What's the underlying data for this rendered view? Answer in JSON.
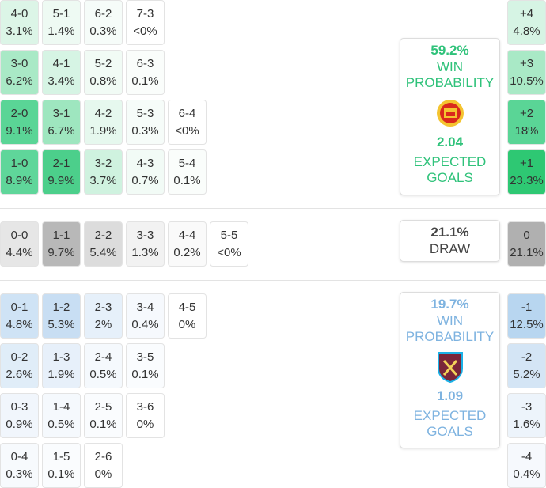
{
  "sections": [
    {
      "name": "home",
      "rows": [
        [
          {
            "score": "4-0",
            "pct": "3.1%",
            "color": "#dcf5e7"
          },
          {
            "score": "5-1",
            "pct": "1.4%",
            "color": "#eefaf3"
          },
          {
            "score": "6-2",
            "pct": "0.3%",
            "color": "#f6fcf9"
          },
          {
            "score": "7-3",
            "pct": "<0%",
            "color": "#ffffff"
          }
        ],
        [
          {
            "score": "3-0",
            "pct": "6.2%",
            "color": "#a9e9c6"
          },
          {
            "score": "4-1",
            "pct": "3.4%",
            "color": "#d6f4e4"
          },
          {
            "score": "5-2",
            "pct": "0.8%",
            "color": "#f1fbf5"
          },
          {
            "score": "6-3",
            "pct": "0.1%",
            "color": "#fafdfb"
          }
        ],
        [
          {
            "score": "2-0",
            "pct": "9.1%",
            "color": "#5ad596"
          },
          {
            "score": "3-1",
            "pct": "6.7%",
            "color": "#9ee6bf"
          },
          {
            "score": "4-2",
            "pct": "1.9%",
            "color": "#e6f8ee"
          },
          {
            "score": "5-3",
            "pct": "0.3%",
            "color": "#f6fcf9"
          },
          {
            "score": "6-4",
            "pct": "<0%",
            "color": "#ffffff"
          }
        ],
        [
          {
            "score": "1-0",
            "pct": "8.9%",
            "color": "#5fd69a"
          },
          {
            "score": "2-1",
            "pct": "9.9%",
            "color": "#4ccf8b"
          },
          {
            "score": "3-2",
            "pct": "3.7%",
            "color": "#cff2df"
          },
          {
            "score": "4-3",
            "pct": "0.7%",
            "color": "#f2fbf6"
          },
          {
            "score": "5-4",
            "pct": "0.1%",
            "color": "#fafdfb"
          }
        ]
      ],
      "margins": [
        {
          "label": "+4",
          "pct": "4.8%",
          "color": "#d6f4e4"
        },
        {
          "label": "+3",
          "pct": "10.5%",
          "color": "#a9e9c6"
        },
        {
          "label": "+2",
          "pct": "18%",
          "color": "#5ad596"
        },
        {
          "label": "+1",
          "pct": "23.3%",
          "color": "#2ec873"
        }
      ],
      "panel": {
        "probability": "59.2%",
        "probability_label": "WIN PROBABILITY",
        "expected_goals": "2.04",
        "expected_goals_label": "EXPECTED GOALS",
        "color": "#2fc27a"
      }
    },
    {
      "name": "draw",
      "rows": [
        [
          {
            "score": "0-0",
            "pct": "4.4%",
            "color": "#e6e6e6"
          },
          {
            "score": "1-1",
            "pct": "9.7%",
            "color": "#b8b8b8"
          },
          {
            "score": "2-2",
            "pct": "5.4%",
            "color": "#dcdcdc"
          },
          {
            "score": "3-3",
            "pct": "1.3%",
            "color": "#f2f2f2"
          },
          {
            "score": "4-4",
            "pct": "0.2%",
            "color": "#fafafa"
          },
          {
            "score": "5-5",
            "pct": "<0%",
            "color": "#ffffff"
          }
        ]
      ],
      "margins": [
        {
          "label": "0",
          "pct": "21.1%",
          "color": "#b0b0b0"
        }
      ],
      "panel": {
        "probability": "21.1%",
        "probability_label": "DRAW",
        "color": "#444444"
      }
    },
    {
      "name": "away",
      "rows": [
        [
          {
            "score": "0-1",
            "pct": "4.8%",
            "color": "#cfe3f5"
          },
          {
            "score": "1-2",
            "pct": "5.3%",
            "color": "#c8def3"
          },
          {
            "score": "2-3",
            "pct": "2%",
            "color": "#e6f0fa"
          },
          {
            "score": "3-4",
            "pct": "0.4%",
            "color": "#f6f9fd"
          },
          {
            "score": "4-5",
            "pct": "0%",
            "color": "#ffffff"
          }
        ],
        [
          {
            "score": "0-2",
            "pct": "2.6%",
            "color": "#e0edf8"
          },
          {
            "score": "1-3",
            "pct": "1.9%",
            "color": "#e7f0fa"
          },
          {
            "score": "2-4",
            "pct": "0.5%",
            "color": "#f5f9fd"
          },
          {
            "score": "3-5",
            "pct": "0.1%",
            "color": "#fafcfe"
          }
        ],
        [
          {
            "score": "0-3",
            "pct": "0.9%",
            "color": "#f1f6fc"
          },
          {
            "score": "1-4",
            "pct": "0.5%",
            "color": "#f5f9fd"
          },
          {
            "score": "2-5",
            "pct": "0.1%",
            "color": "#fafcfe"
          },
          {
            "score": "3-6",
            "pct": "0%",
            "color": "#ffffff"
          }
        ],
        [
          {
            "score": "0-4",
            "pct": "0.3%",
            "color": "#f7fafd"
          },
          {
            "score": "1-5",
            "pct": "0.1%",
            "color": "#fafcfe"
          },
          {
            "score": "2-6",
            "pct": "0%",
            "color": "#ffffff"
          }
        ]
      ],
      "margins": [
        {
          "label": "-1",
          "pct": "12.5%",
          "color": "#b8d6f0"
        },
        {
          "label": "-2",
          "pct": "5.2%",
          "color": "#d4e5f5"
        },
        {
          "label": "-3",
          "pct": "1.6%",
          "color": "#edf4fb"
        },
        {
          "label": "-4",
          "pct": "0.4%",
          "color": "#f6f9fd"
        }
      ],
      "panel": {
        "probability": "19.7%",
        "probability_label": "WIN PROBABILITY",
        "expected_goals": "1.09",
        "expected_goals_label": "EXPECTED GOALS",
        "color": "#7eb3e0"
      }
    }
  ]
}
